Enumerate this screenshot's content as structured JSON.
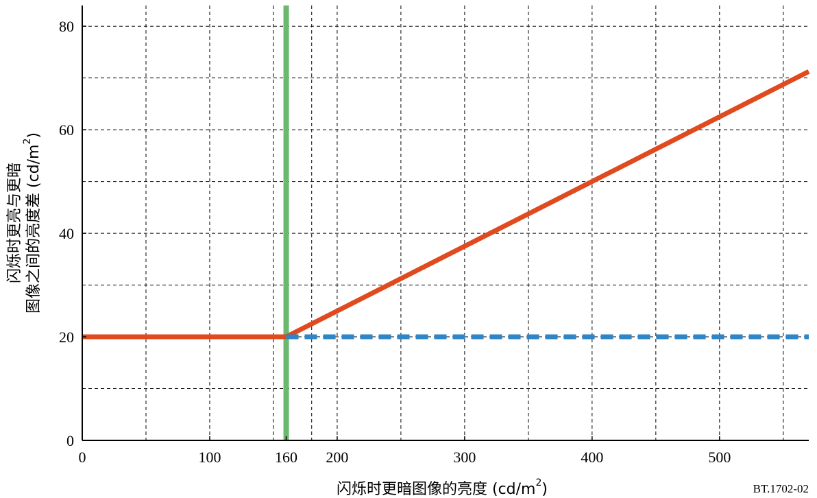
{
  "chart_data": {
    "type": "line",
    "title": "",
    "figure_id": "BT.1702-02",
    "xlabel": "闪烁时更暗图像的亮度 (cd/m",
    "xlabel_sup": "2",
    "xlabel_close": ")",
    "ylabel_line1": "闪烁时更亮与更暗",
    "ylabel_line2": "图像之间的亮度差 (cd/m",
    "ylabel_sup": "2",
    "ylabel_close": ")",
    "xlim": [
      0,
      570
    ],
    "ylim": [
      0,
      84
    ],
    "xticks": [
      0,
      100,
      160,
      200,
      300,
      400,
      500
    ],
    "yticks": [
      0,
      20,
      40,
      60,
      80
    ],
    "x_gridlines": [
      50,
      100,
      150,
      160,
      180,
      200,
      250,
      300,
      350,
      400,
      450,
      500,
      550
    ],
    "y_gridlines": [
      10,
      20,
      30,
      40,
      50,
      60,
      70,
      80
    ],
    "grid": true,
    "legend": "none",
    "series": [
      {
        "color": "#e04a1f",
        "style": "solid",
        "x": [
          0,
          160,
          570
        ],
        "y": [
          20,
          20,
          71.25
        ]
      },
      {
        "color": "#2e86c8",
        "style": "dashed",
        "x": [
          160,
          570
        ],
        "y": [
          20,
          20
        ]
      }
    ],
    "vertical_lines": [
      {
        "x": 160,
        "color": "#6cb86c"
      }
    ]
  }
}
